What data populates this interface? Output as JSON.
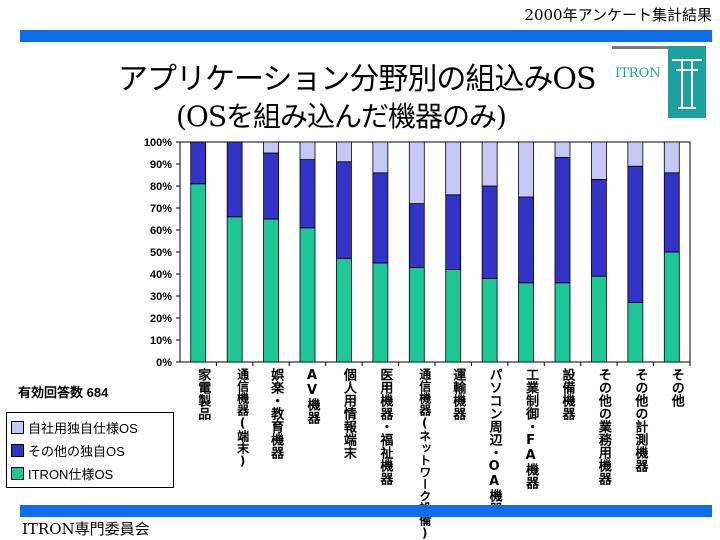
{
  "header": {
    "note": "2000年アンケート集計結果"
  },
  "title": {
    "line1": "アプリケーション分野別の組込みOS",
    "line2": "(OSを組み込んだ機器のみ)"
  },
  "logo": {
    "text": "ITRON"
  },
  "response_count": "有効回答数 684",
  "footer": "ITRON専門委員会",
  "colors": {
    "ITRON": "#1ec896",
    "other": "#3333c8",
    "own": "#c8c8f8",
    "accent": "#0e6eea"
  },
  "chart_data": {
    "type": "bar",
    "stacked": true,
    "ylim": [
      0,
      100
    ],
    "yticks": [
      "0%",
      "10%",
      "20%",
      "30%",
      "40%",
      "50%",
      "60%",
      "70%",
      "80%",
      "90%",
      "100%"
    ],
    "categories": [
      "家電製品",
      "通信機器(端末)",
      "娯楽・教育機器",
      "AV機器",
      "個人用情報端末",
      "医用機器・福祉機器",
      "通信機器(ネットワーク設備)",
      "運輸機器",
      "パソコン周辺・OA機器",
      "工業制御・FA機器",
      "設備機器",
      "その他の業務用機器",
      "その他の計測機器",
      "その他"
    ],
    "series": [
      {
        "name": "ITRON仕様OS",
        "values": [
          81,
          66,
          65,
          61,
          47,
          45,
          43,
          42,
          38,
          36,
          36,
          39,
          27,
          50
        ]
      },
      {
        "name": "その他の独自OS",
        "values": [
          19,
          34,
          30,
          31,
          44,
          41,
          29,
          34,
          42,
          39,
          57,
          44,
          62,
          36
        ]
      },
      {
        "name": "自社用独自仕様OS",
        "values": [
          0,
          0,
          5,
          8,
          9,
          14,
          28,
          24,
          20,
          25,
          7,
          17,
          11,
          14
        ]
      }
    ],
    "legend_placement": "bottom-left"
  }
}
